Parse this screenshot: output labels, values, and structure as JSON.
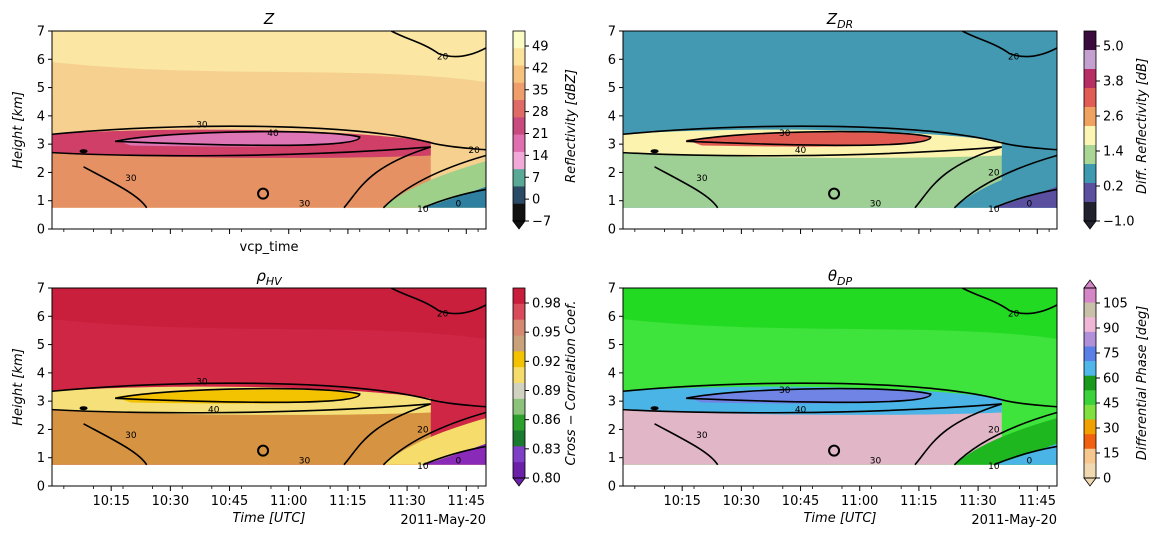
{
  "figure": {
    "date_label": "2011-May-20"
  },
  "chart_data": [
    {
      "type": "heatmap",
      "id": "Z",
      "title": "Z",
      "title_sub": "",
      "ylabel": "Height [km]",
      "xlabel": "vcp_time",
      "show_time_ticks": false,
      "ylim": [
        0,
        7
      ],
      "yticks": [
        "0",
        "1",
        "2",
        "3",
        "4",
        "5",
        "6",
        "7"
      ],
      "xlim": [
        0,
        110
      ],
      "xtick_minutes": [
        15,
        30,
        45,
        60,
        75,
        90,
        105
      ],
      "xtick_labels": [
        "10:15",
        "10:30",
        "10:45",
        "11:00",
        "11:15",
        "11:30",
        "11:45"
      ],
      "colorbar": {
        "label": "Reflectivity [dBZ]",
        "ticks": [
          "49",
          "42",
          "35",
          "28",
          "21",
          "14",
          "7",
          "0",
          "−7"
        ],
        "extend": "min",
        "stops": [
          "#fbfbc4",
          "#fbe39b",
          "#f7c27e",
          "#ef9d6a",
          "#e06a66",
          "#c94a7e",
          "#e06fb0",
          "#f2a8d8",
          "#5aa896",
          "#2a4a66",
          "#111111"
        ]
      },
      "field": {
        "background": "#f6d08e",
        "top": "#fbeaa8",
        "band_color": "#cf3f68",
        "core_color": "#de75b5",
        "lower": "#e38a5e",
        "low_right": "#9fd08a",
        "low_right_deep": "#2f7fa0"
      },
      "contour_labels": [
        {
          "text": "20",
          "t": 99,
          "h": 6.1
        },
        {
          "text": "20",
          "t": 107,
          "h": 2.8
        },
        {
          "text": "30",
          "t": 38,
          "h": 3.7
        },
        {
          "text": "40",
          "t": 56,
          "h": 3.4
        },
        {
          "text": "30",
          "t": 20,
          "h": 1.8
        },
        {
          "text": "30",
          "t": 64,
          "h": 0.9
        },
        {
          "text": "10",
          "t": 94,
          "h": 0.7
        },
        {
          "text": "0",
          "t": 103,
          "h": 0.9
        }
      ]
    },
    {
      "type": "heatmap",
      "id": "ZDR",
      "title": "Z",
      "title_sub": "DR",
      "ylabel": "",
      "xlabel": "",
      "show_time_ticks": false,
      "ylim": [
        0,
        7
      ],
      "yticks": [
        "0",
        "1",
        "2",
        "3",
        "4",
        "5",
        "6",
        "7"
      ],
      "xlim": [
        0,
        110
      ],
      "xtick_minutes": [
        15,
        30,
        45,
        60,
        75,
        90,
        105
      ],
      "xtick_labels": [
        "10:15",
        "10:30",
        "10:45",
        "11:00",
        "11:15",
        "11:30",
        "11:45"
      ],
      "colorbar": {
        "label": "Diff. Reflectivity [dB]",
        "ticks": [
          "5.0",
          "3.8",
          "2.6",
          "1.4",
          "0.2",
          "−1.0"
        ],
        "extend": "min",
        "stops": [
          "#3a0b3d",
          "#c3a0cf",
          "#b92d65",
          "#e05c54",
          "#f0a360",
          "#fbf6b4",
          "#a9d694",
          "#3f9ab0",
          "#5b4fa0",
          "#22222e"
        ]
      },
      "field": {
        "background": "#4399b1",
        "top": "#4399b1",
        "band_color": "#fbf3ae",
        "core_color": "#e05a52",
        "lower": "#a9d694",
        "low_right": "#4399b1",
        "low_right_deep": "#5b4fa0"
      },
      "contour_labels": [
        {
          "text": "20",
          "t": 99,
          "h": 6.1
        },
        {
          "text": "30",
          "t": 41,
          "h": 3.4
        },
        {
          "text": "40",
          "t": 45,
          "h": 2.8
        },
        {
          "text": "30",
          "t": 20,
          "h": 1.8
        },
        {
          "text": "20",
          "t": 94,
          "h": 2.0
        },
        {
          "text": "30",
          "t": 64,
          "h": 0.9
        },
        {
          "text": "10",
          "t": 94,
          "h": 0.7
        },
        {
          "text": "0",
          "t": 103,
          "h": 0.9
        }
      ]
    },
    {
      "type": "heatmap",
      "id": "RHOHV",
      "title": "ρ",
      "title_sub": "HV",
      "ylabel": "Height [km]",
      "xlabel": "Time [UTC]",
      "show_time_ticks": true,
      "ylim": [
        0,
        7
      ],
      "yticks": [
        "0",
        "1",
        "2",
        "3",
        "4",
        "5",
        "6",
        "7"
      ],
      "xlim": [
        0,
        110
      ],
      "xtick_minutes": [
        15,
        30,
        45,
        60,
        75,
        90,
        105
      ],
      "xtick_labels": [
        "10:15",
        "10:30",
        "10:45",
        "11:00",
        "11:15",
        "11:30",
        "11:45"
      ],
      "colorbar": {
        "label": "Cross − Correlation Coef.",
        "ticks": [
          "0.98",
          "0.95",
          "0.92",
          "0.89",
          "0.86",
          "0.83",
          "0.80"
        ],
        "extend": "min",
        "stops": [
          "#c81e3c",
          "#d94a5a",
          "#d68870",
          "#c9a17a",
          "#f3c200",
          "#f6dc6a",
          "#d2d2c0",
          "#8cc27a",
          "#2ca02c",
          "#1a7a30",
          "#7f3fc6",
          "#6a20a8"
        ]
      },
      "field": {
        "background": "#cf2645",
        "top": "#c81e3c",
        "band_color": "#f5e07a",
        "core_color": "#f3c200",
        "lower": "#d6a040",
        "low_right": "#f6dc6a",
        "low_right_deep": "#8a2ab8"
      },
      "contour_labels": [
        {
          "text": "20",
          "t": 99,
          "h": 6.1
        },
        {
          "text": "30",
          "t": 38,
          "h": 3.7
        },
        {
          "text": "40",
          "t": 41,
          "h": 2.7
        },
        {
          "text": "30",
          "t": 20,
          "h": 1.8
        },
        {
          "text": "20",
          "t": 94,
          "h": 2.0
        },
        {
          "text": "30",
          "t": 64,
          "h": 0.9
        },
        {
          "text": "10",
          "t": 94,
          "h": 0.7
        },
        {
          "text": "0",
          "t": 103,
          "h": 0.9
        }
      ]
    },
    {
      "type": "heatmap",
      "id": "THETADP",
      "title": "θ",
      "title_sub": "DP",
      "ylabel": "",
      "xlabel": "Time [UTC]",
      "show_time_ticks": true,
      "ylim": [
        0,
        7
      ],
      "yticks": [
        "0",
        "1",
        "2",
        "3",
        "4",
        "5",
        "6",
        "7"
      ],
      "xlim": [
        0,
        110
      ],
      "xtick_minutes": [
        15,
        30,
        45,
        60,
        75,
        90,
        105
      ],
      "xtick_labels": [
        "10:15",
        "10:30",
        "10:45",
        "11:00",
        "11:15",
        "11:30",
        "11:45"
      ],
      "colorbar": {
        "label": "Differential Phase [deg]",
        "ticks": [
          "105",
          "90",
          "75",
          "60",
          "45",
          "30",
          "15",
          "0"
        ],
        "extend": "both",
        "stops": [
          "#d586c6",
          "#c8c0a8",
          "#f0b6d6",
          "#b090d8",
          "#5a7fe6",
          "#4fb8e8",
          "#1a9a1a",
          "#3cd23c",
          "#7fe040",
          "#f0a000",
          "#f06010",
          "#f6c890",
          "#f0d8b0"
        ]
      },
      "field": {
        "background": "#3ee33c",
        "top": "#1fd81f",
        "band_color": "#4ab4e6",
        "core_color": "#6f84e4",
        "lower": "#f3b0d6",
        "low_right": "#1fb71f",
        "low_right_deep": "#4ab4e6"
      },
      "contour_labels": [
        {
          "text": "20",
          "t": 99,
          "h": 6.1
        },
        {
          "text": "30",
          "t": 41,
          "h": 3.4
        },
        {
          "text": "40",
          "t": 45,
          "h": 2.7
        },
        {
          "text": "30",
          "t": 20,
          "h": 1.8
        },
        {
          "text": "20",
          "t": 94,
          "h": 2.0
        },
        {
          "text": "30",
          "t": 64,
          "h": 0.9
        },
        {
          "text": "10",
          "t": 94,
          "h": 0.7
        },
        {
          "text": "0",
          "t": 103,
          "h": 0.9
        }
      ]
    }
  ]
}
